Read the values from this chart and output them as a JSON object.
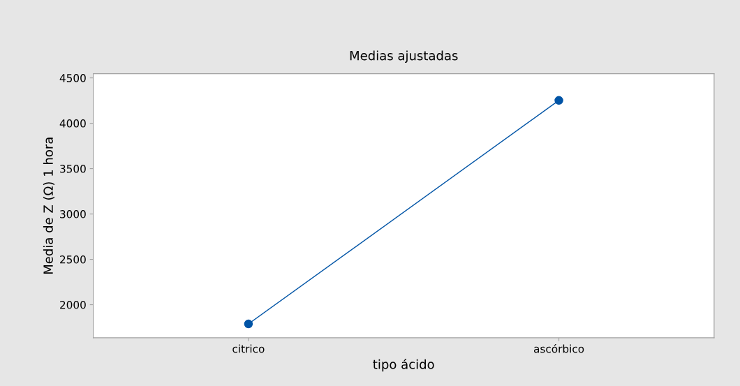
{
  "chart_data": {
    "type": "line",
    "title": "Medias ajustadas",
    "xlabel": "tipo ácido",
    "ylabel": "Media de Z (Ω) 1 hora",
    "categories": [
      "citrico",
      "ascórbico"
    ],
    "series": [
      {
        "color": "#0054a6",
        "values": [
          1788,
          4252
        ]
      }
    ],
    "ylim": [
      1636,
      4546
    ],
    "yticks": [
      2000,
      2500,
      3000,
      3500,
      4000,
      4500
    ],
    "marker": "circle",
    "line_style": "solid",
    "grid": false,
    "legend": false
  }
}
